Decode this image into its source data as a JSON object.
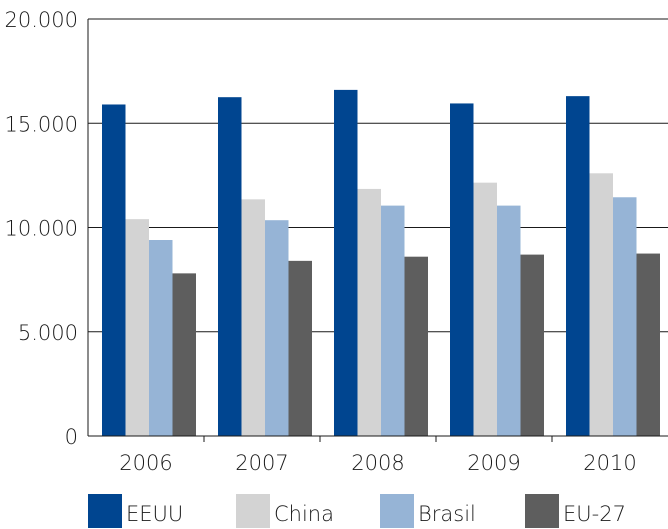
{
  "chart_data": {
    "type": "bar",
    "title": "",
    "xlabel": "",
    "ylabel": "",
    "categories": [
      "2006",
      "2007",
      "2008",
      "2009",
      "2010"
    ],
    "ylim": [
      0,
      20000
    ],
    "yticks": [
      0,
      5000,
      10000,
      15000,
      20000
    ],
    "ytick_labels": [
      "0",
      "5.000",
      "10.000",
      "15.000",
      "20.000"
    ],
    "grid": true,
    "legend_position": "bottom",
    "series": [
      {
        "name": "EEUU",
        "color": "#004590",
        "values": [
          15900,
          16250,
          16600,
          15950,
          16300
        ]
      },
      {
        "name": "China",
        "color": "#d3d3d3",
        "values": [
          10400,
          11350,
          11850,
          12150,
          12600
        ]
      },
      {
        "name": "Brasil",
        "color": "#96b4d6",
        "values": [
          9400,
          10350,
          11050,
          11050,
          11450
        ]
      },
      {
        "name": "EU-27",
        "color": "#5e5e5e",
        "values": [
          7800,
          8400,
          8600,
          8700,
          8750
        ]
      }
    ]
  }
}
